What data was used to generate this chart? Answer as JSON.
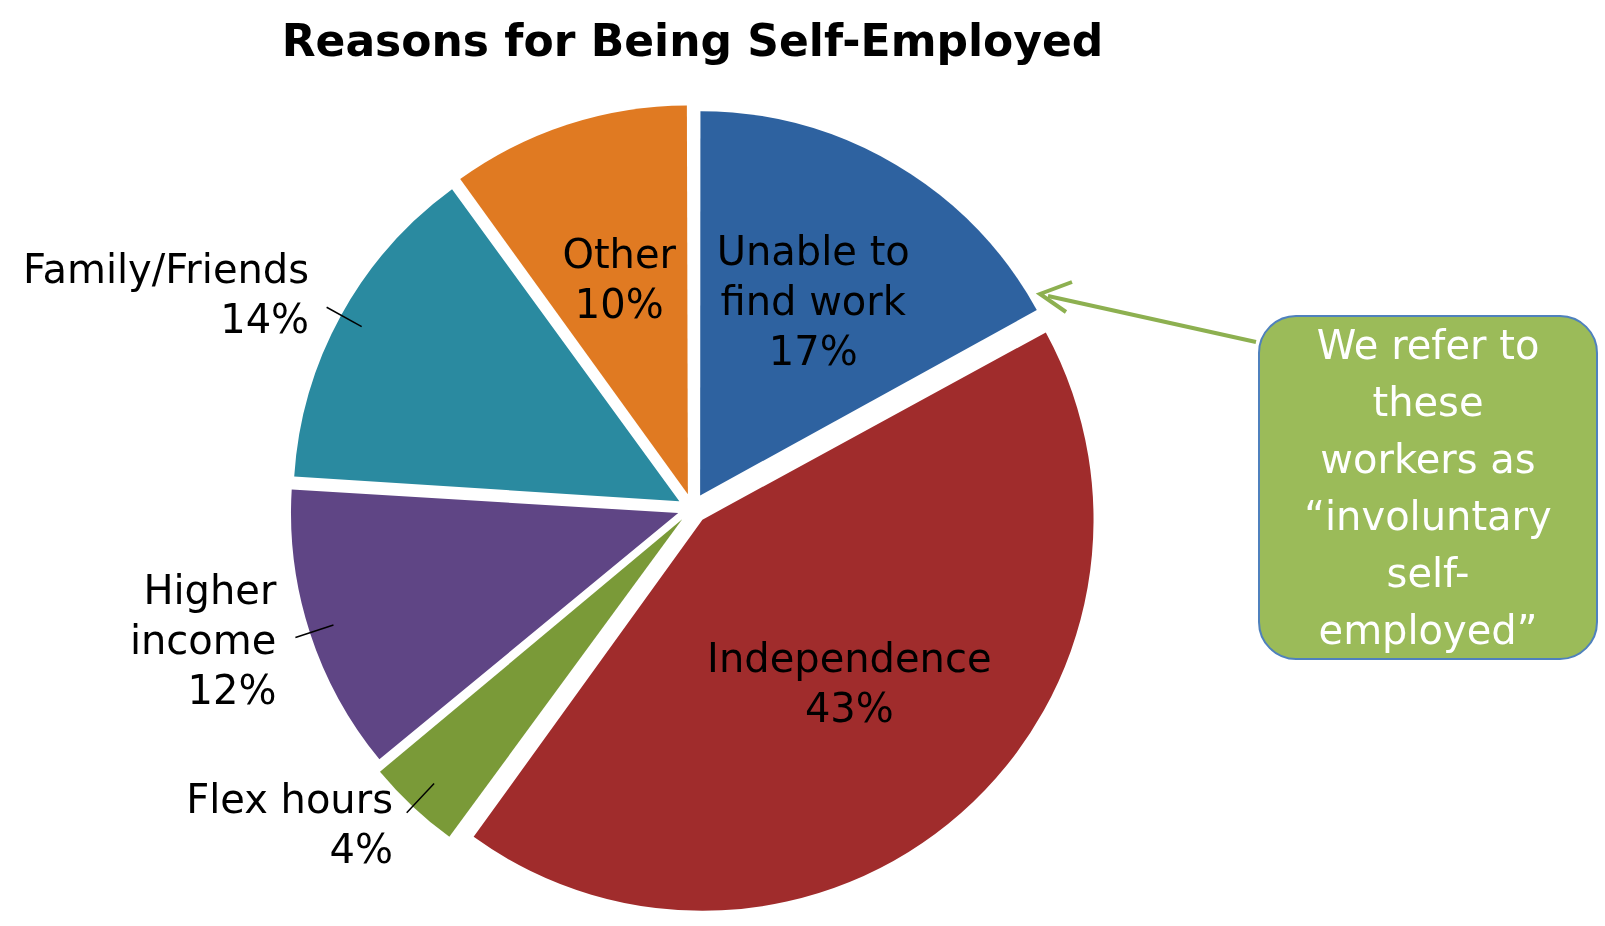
{
  "chart_data": {
    "type": "pie",
    "title": "Reasons for Being Self-Employed",
    "categories": [
      "Unable to find work",
      "Independence",
      "Flex hours",
      "Higher income",
      "Family/Friends",
      "Other"
    ],
    "values": [
      17,
      43,
      4,
      12,
      14,
      10
    ],
    "colors": [
      "#2e62a0",
      "#a02c2c",
      "#7a9a38",
      "#5f4585",
      "#2a8aa0",
      "#e07a22"
    ],
    "value_labels": [
      "17%",
      "43%",
      "4%",
      "12%",
      "14%",
      "10%"
    ],
    "annotations": [
      "We refer to these workers as “involuntary self-employed”"
    ]
  }
}
